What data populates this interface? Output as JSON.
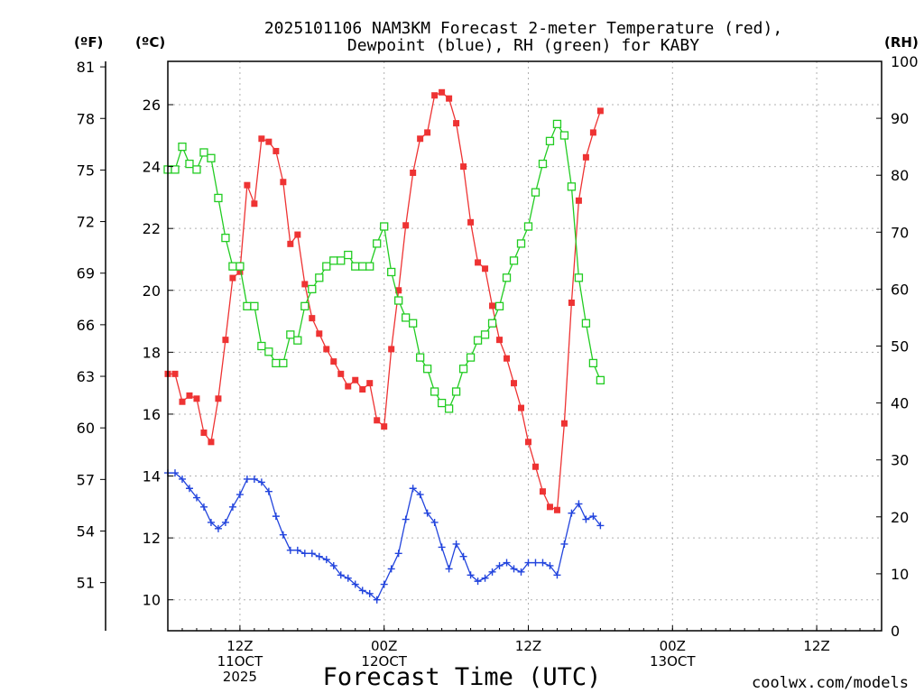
{
  "colors": {
    "temperature": "#ee3333",
    "dewpoint": "#2244dd",
    "rh": "#22cc22",
    "grid": "#b0b0b0",
    "credit": "#e03030"
  },
  "chart_data": {
    "type": "line",
    "title_line1": "2025101106 NAM3KM Forecast 2-meter Temperature (red),",
    "title_line2": "Dewpoint (blue), RH (green) for KABY",
    "xlabel": "Forecast Time (UTC)",
    "credit": "coolwx.com/models",
    "units": {
      "fahrenheit": "(ºF)",
      "celsius": "(ºC)",
      "rh": "(RH)"
    },
    "x_hours": [
      0,
      1,
      2,
      3,
      4,
      5,
      6,
      7,
      8,
      9,
      10,
      11,
      12,
      13,
      14,
      15,
      16,
      17,
      18,
      19,
      20,
      21,
      22,
      23,
      24,
      25,
      26,
      27,
      28,
      29,
      30,
      31,
      32,
      33,
      34,
      35,
      36,
      37,
      38,
      39,
      40,
      41,
      42,
      43,
      44,
      45,
      46,
      47,
      48,
      49,
      50,
      51,
      52,
      53,
      54,
      55,
      56,
      57,
      58,
      59,
      60,
      61,
      62,
      63,
      64,
      65,
      66,
      67,
      68,
      69,
      70,
      71,
      72,
      73,
      74,
      75,
      76,
      77,
      78,
      79,
      80,
      81,
      82,
      83,
      84,
      85,
      86,
      87,
      88,
      89,
      90,
      91,
      92,
      93,
      94,
      95,
      96,
      97,
      98,
      99
    ],
    "x_range_hours": [
      0,
      99
    ],
    "x_ticks": [
      {
        "hour": 10,
        "lines": [
          "12Z",
          "11OCT",
          "2025"
        ]
      },
      {
        "hour": 30,
        "lines": [
          "00Z",
          "12OCT"
        ]
      },
      {
        "hour": 50,
        "lines": [
          "12Z"
        ]
      },
      {
        "hour": 70,
        "lines": [
          "00Z",
          "13OCT"
        ]
      },
      {
        "hour": 90,
        "lines": [
          "12Z"
        ]
      }
    ],
    "celsius_range": [
      9,
      27.4
    ],
    "celsius_ticks": [
      10,
      12,
      14,
      16,
      18,
      20,
      22,
      24,
      26
    ],
    "fahrenheit_ticks": [
      51,
      54,
      57,
      60,
      63,
      66,
      69,
      72,
      75,
      78,
      81
    ],
    "rh_range": [
      0,
      100
    ],
    "rh_ticks": [
      0,
      10,
      20,
      30,
      40,
      50,
      60,
      70,
      80,
      90,
      100
    ],
    "series": [
      {
        "name": "Temperature",
        "axis": "celsius",
        "marker": "filled-square",
        "values": [
          17.3,
          17.3,
          16.4,
          16.6,
          16.5,
          15.4,
          15.1,
          16.5,
          18.4,
          20.4,
          20.6,
          23.4,
          22.8,
          24.9,
          24.8,
          24.5,
          23.5,
          21.5,
          21.8,
          20.2,
          19.1,
          18.6,
          18.1,
          17.7,
          17.3,
          16.9,
          17.1,
          16.8,
          17.0,
          15.8,
          15.6,
          18.1,
          20.0,
          22.1,
          23.8,
          24.9,
          25.1,
          26.3,
          26.4,
          26.2,
          25.4,
          24.0,
          22.2,
          20.9,
          20.7,
          19.5,
          18.4,
          17.8,
          17.0,
          16.2,
          15.1,
          14.3,
          13.5,
          13.0,
          12.9,
          15.7,
          19.6,
          22.9,
          24.3,
          25.1,
          25.8
        ]
      },
      {
        "name": "Dewpoint",
        "axis": "celsius",
        "marker": "plus",
        "values": [
          14.1,
          14.1,
          13.9,
          13.6,
          13.3,
          13.0,
          12.5,
          12.3,
          12.5,
          13.0,
          13.4,
          13.9,
          13.9,
          13.8,
          13.5,
          12.7,
          12.1,
          11.6,
          11.6,
          11.5,
          11.5,
          11.4,
          11.3,
          11.1,
          10.8,
          10.7,
          10.5,
          10.3,
          10.2,
          10.0,
          10.5,
          11.0,
          11.5,
          12.6,
          13.6,
          13.4,
          12.8,
          12.5,
          11.7,
          11.0,
          11.8,
          11.4,
          10.8,
          10.6,
          10.7,
          10.9,
          11.1,
          11.2,
          11.0,
          10.9,
          11.2,
          11.2,
          11.2,
          11.1,
          10.8,
          11.8,
          12.8,
          13.1,
          12.6,
          12.7,
          12.4
        ]
      },
      {
        "name": "RH",
        "axis": "rh",
        "marker": "open-square",
        "values": [
          81,
          81,
          85,
          82,
          81,
          84,
          83,
          76,
          69,
          64,
          64,
          57,
          57,
          50,
          49,
          47,
          47,
          52,
          51,
          57,
          60,
          62,
          64,
          65,
          65,
          66,
          64,
          64,
          64,
          68,
          71,
          63,
          58,
          55,
          54,
          48,
          46,
          42,
          40,
          39,
          42,
          46,
          48,
          51,
          52,
          54,
          57,
          62,
          65,
          68,
          71,
          77,
          82,
          86,
          89,
          87,
          78,
          62,
          54,
          47,
          44
        ]
      }
    ]
  }
}
